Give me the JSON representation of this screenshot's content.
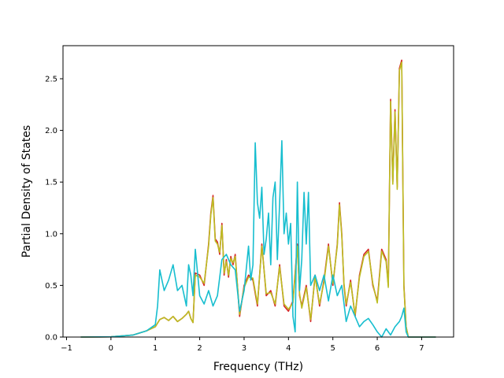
{
  "chart_data": {
    "type": "line",
    "title": "",
    "xlabel": "Frequency (THz)",
    "ylabel": "Partial Density of States",
    "xlim": [
      -1.08,
      7.72
    ],
    "ylim": [
      0,
      2.82
    ],
    "xticks": [
      -1,
      0,
      1,
      2,
      3,
      4,
      5,
      6,
      7
    ],
    "yticks": [
      0.0,
      0.5,
      1.0,
      1.5,
      2.0,
      2.5
    ],
    "xtick_labels": [
      "−1",
      "0",
      "1",
      "2",
      "3",
      "4",
      "5",
      "6",
      "7"
    ],
    "ytick_labels": [
      "0.0",
      "0.5",
      "1.0",
      "1.5",
      "2.0",
      "2.5"
    ],
    "grid": false,
    "series": [
      {
        "color": "#d62728",
        "x": [
          -0.68,
          0.0,
          0.5,
          0.8,
          1.0,
          1.1,
          1.2,
          1.3,
          1.4,
          1.5,
          1.6,
          1.7,
          1.75,
          1.8,
          1.85,
          1.9,
          2.0,
          2.1,
          2.2,
          2.25,
          2.3,
          2.35,
          2.4,
          2.45,
          2.5,
          2.55,
          2.6,
          2.65,
          2.7,
          2.75,
          2.8,
          2.9,
          3.0,
          3.1,
          3.2,
          3.3,
          3.4,
          3.5,
          3.6,
          3.7,
          3.8,
          3.9,
          4.0,
          4.1,
          4.2,
          4.25,
          4.3,
          4.4,
          4.5,
          4.6,
          4.7,
          4.8,
          4.9,
          5.0,
          5.1,
          5.15,
          5.2,
          5.25,
          5.3,
          5.4,
          5.5,
          5.6,
          5.7,
          5.8,
          5.9,
          6.0,
          6.1,
          6.2,
          6.25,
          6.3,
          6.35,
          6.4,
          6.45,
          6.5,
          6.55,
          6.6,
          6.65,
          6.7,
          7.0,
          7.32
        ],
        "y": [
          0.0,
          0.002,
          0.02,
          0.06,
          0.1,
          0.17,
          0.19,
          0.16,
          0.2,
          0.15,
          0.18,
          0.22,
          0.25,
          0.18,
          0.14,
          0.62,
          0.6,
          0.5,
          0.9,
          1.2,
          1.37,
          0.95,
          0.92,
          0.8,
          1.1,
          0.6,
          0.75,
          0.58,
          0.78,
          0.7,
          0.8,
          0.2,
          0.5,
          0.6,
          0.55,
          0.3,
          0.9,
          0.4,
          0.45,
          0.3,
          0.7,
          0.3,
          0.25,
          0.35,
          0.9,
          0.4,
          0.3,
          0.5,
          0.15,
          0.6,
          0.3,
          0.55,
          0.9,
          0.5,
          0.9,
          1.3,
          1.0,
          0.5,
          0.3,
          0.55,
          0.2,
          0.6,
          0.8,
          0.85,
          0.5,
          0.35,
          0.85,
          0.75,
          0.5,
          2.3,
          1.5,
          2.2,
          1.45,
          2.6,
          2.68,
          0.5,
          0.1,
          0.0,
          0.0,
          0.0
        ]
      },
      {
        "color": "#bcbd22",
        "x": [
          -0.68,
          0.0,
          0.5,
          0.8,
          1.0,
          1.1,
          1.2,
          1.3,
          1.4,
          1.5,
          1.6,
          1.7,
          1.75,
          1.8,
          1.85,
          1.9,
          2.0,
          2.1,
          2.2,
          2.25,
          2.3,
          2.35,
          2.4,
          2.45,
          2.5,
          2.55,
          2.6,
          2.65,
          2.7,
          2.75,
          2.8,
          2.9,
          3.0,
          3.1,
          3.2,
          3.3,
          3.4,
          3.5,
          3.6,
          3.7,
          3.8,
          3.9,
          4.0,
          4.1,
          4.2,
          4.25,
          4.3,
          4.4,
          4.5,
          4.6,
          4.7,
          4.8,
          4.9,
          5.0,
          5.1,
          5.15,
          5.2,
          5.25,
          5.3,
          5.4,
          5.5,
          5.6,
          5.7,
          5.8,
          5.9,
          6.0,
          6.1,
          6.2,
          6.25,
          6.3,
          6.35,
          6.4,
          6.45,
          6.5,
          6.55,
          6.6,
          6.65,
          6.7,
          7.0,
          7.32
        ],
        "y": [
          0.0,
          0.002,
          0.02,
          0.06,
          0.1,
          0.17,
          0.19,
          0.16,
          0.2,
          0.15,
          0.18,
          0.22,
          0.25,
          0.18,
          0.14,
          0.6,
          0.58,
          0.52,
          0.88,
          1.18,
          1.35,
          0.93,
          0.9,
          0.82,
          1.08,
          0.62,
          0.73,
          0.6,
          0.76,
          0.72,
          0.78,
          0.22,
          0.48,
          0.58,
          0.57,
          0.32,
          0.88,
          0.42,
          0.43,
          0.32,
          0.68,
          0.32,
          0.27,
          0.33,
          0.88,
          0.42,
          0.28,
          0.48,
          0.17,
          0.58,
          0.32,
          0.53,
          0.88,
          0.52,
          0.88,
          1.28,
          0.98,
          0.52,
          0.32,
          0.53,
          0.22,
          0.58,
          0.78,
          0.83,
          0.52,
          0.33,
          0.83,
          0.73,
          0.48,
          2.28,
          1.48,
          2.18,
          1.43,
          2.58,
          2.66,
          0.48,
          0.1,
          0.0,
          0.0,
          0.0
        ]
      },
      {
        "color": "#17becf",
        "x": [
          -0.68,
          0.0,
          0.5,
          0.8,
          1.0,
          1.05,
          1.1,
          1.2,
          1.3,
          1.4,
          1.5,
          1.6,
          1.7,
          1.75,
          1.8,
          1.85,
          1.9,
          2.0,
          2.1,
          2.2,
          2.3,
          2.4,
          2.5,
          2.6,
          2.7,
          2.8,
          2.9,
          3.0,
          3.1,
          3.15,
          3.2,
          3.25,
          3.3,
          3.35,
          3.4,
          3.45,
          3.5,
          3.55,
          3.6,
          3.65,
          3.7,
          3.75,
          3.8,
          3.85,
          3.9,
          3.95,
          4.0,
          4.05,
          4.1,
          4.15,
          4.2,
          4.25,
          4.3,
          4.35,
          4.4,
          4.45,
          4.5,
          4.6,
          4.7,
          4.8,
          4.9,
          5.0,
          5.1,
          5.2,
          5.3,
          5.4,
          5.5,
          5.6,
          5.7,
          5.8,
          5.9,
          6.0,
          6.1,
          6.2,
          6.3,
          6.4,
          6.5,
          6.55,
          6.6,
          6.65,
          6.7,
          7.0,
          7.32
        ],
        "y": [
          0.0,
          0.002,
          0.02,
          0.06,
          0.12,
          0.3,
          0.65,
          0.45,
          0.55,
          0.7,
          0.45,
          0.5,
          0.3,
          0.7,
          0.6,
          0.4,
          0.85,
          0.4,
          0.32,
          0.45,
          0.3,
          0.4,
          0.75,
          0.8,
          0.7,
          0.65,
          0.25,
          0.45,
          0.88,
          0.55,
          0.7,
          1.88,
          1.3,
          1.15,
          1.45,
          0.8,
          0.95,
          1.2,
          0.7,
          1.35,
          1.5,
          0.75,
          1.3,
          1.9,
          1.0,
          1.2,
          0.9,
          1.1,
          0.2,
          0.05,
          1.5,
          0.45,
          0.75,
          1.4,
          0.9,
          1.4,
          0.5,
          0.6,
          0.45,
          0.6,
          0.35,
          0.6,
          0.4,
          0.5,
          0.15,
          0.3,
          0.2,
          0.1,
          0.15,
          0.18,
          0.12,
          0.05,
          0.0,
          0.08,
          0.02,
          0.1,
          0.15,
          0.2,
          0.28,
          0.05,
          0.0,
          0.0,
          0.0
        ]
      }
    ]
  }
}
